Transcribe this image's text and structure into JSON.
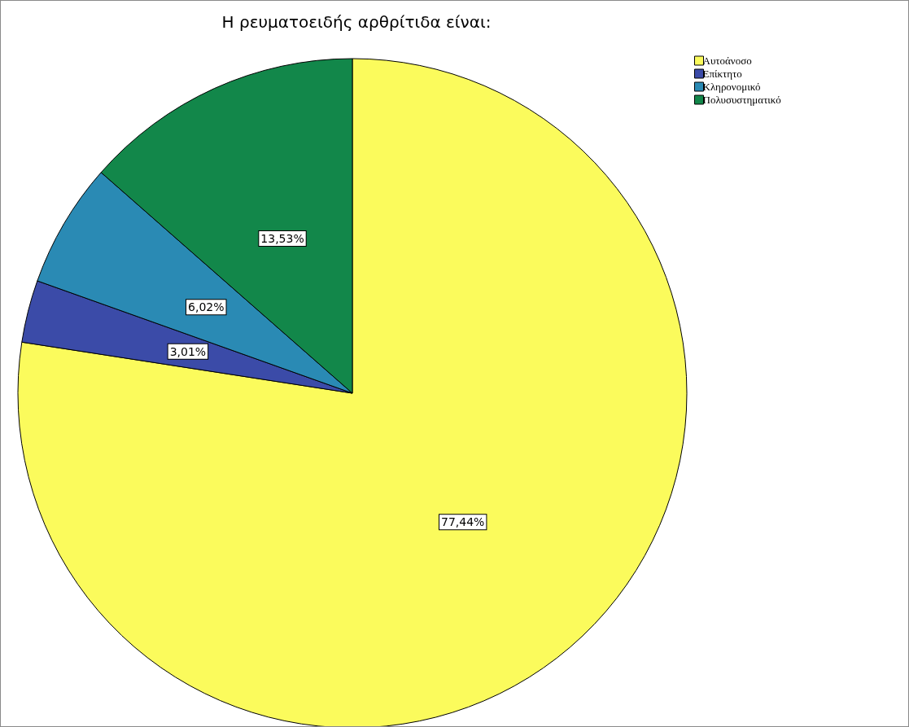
{
  "chart_data": {
    "type": "pie",
    "title": "Η ρευματοειδής αρθρίτιδα είναι:",
    "categories": [
      "Αυτοάνοσο",
      "Επίκτητο",
      "Κληρονομικό",
      "Πολυσυστηματικό"
    ],
    "values": [
      77.44,
      3.01,
      6.02,
      13.53
    ],
    "colors": [
      "#fbfb5c",
      "#3b4ba8",
      "#2a8ab4",
      "#12874a"
    ],
    "value_labels": [
      "77,44%",
      "3,01%",
      "6,02%",
      "13,53%"
    ],
    "legend": "top right"
  }
}
